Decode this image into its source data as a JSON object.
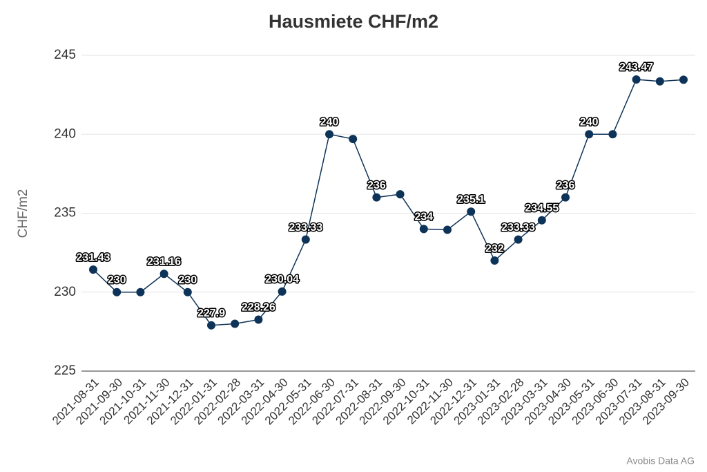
{
  "chart_data": {
    "type": "line",
    "title": "Hausmiete CHF/m2",
    "y_label": "CHF/m2",
    "source": "Avobis Data AG",
    "categories": [
      "2021-08-31",
      "2021-09-30",
      "2021-10-31",
      "2021-11-30",
      "2021-12-31",
      "2022-01-31",
      "2022-02-28",
      "2022-03-31",
      "2022-04-30",
      "2022-05-31",
      "2022-06-30",
      "2022-07-31",
      "2022-08-31",
      "2022-09-30",
      "2022-10-31",
      "2022-11-30",
      "2022-12-31",
      "2023-01-31",
      "2023-02-28",
      "2023-03-31",
      "2023-04-30",
      "2023-05-31",
      "2023-06-30",
      "2023-07-31",
      "2023-08-31",
      "2023-09-30"
    ],
    "series": [
      {
        "name": "Hausmiete",
        "color": "#0e3358",
        "values": [
          231.43,
          230,
          230,
          231.16,
          230,
          227.9,
          228,
          228.26,
          230.04,
          233.33,
          240,
          239.7,
          236,
          236.2,
          234,
          233.95,
          235.1,
          232,
          233.33,
          234.55,
          236,
          240,
          240,
          243.47,
          243.35,
          243.45
        ],
        "value_labels": [
          "231.43",
          "230",
          null,
          "231.16",
          "230",
          "227.9",
          null,
          "228.26",
          "230.04",
          "233.33",
          "240",
          null,
          "236",
          null,
          "234",
          null,
          "235.1",
          "232",
          "233.33",
          "234.55",
          "236",
          "240",
          null,
          "243.47",
          null,
          null
        ]
      }
    ],
    "ylim": [
      225,
      245
    ],
    "yticks": [
      225,
      230,
      235,
      240,
      245
    ],
    "grid": true
  }
}
